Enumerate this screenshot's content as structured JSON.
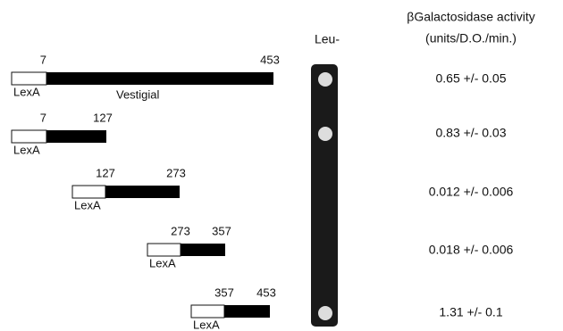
{
  "header": {
    "activity_title": "βGalactosidase activity",
    "activity_units": "(units/D.O./min.)",
    "plate_label": "Leu-"
  },
  "constructs": [
    {
      "start": "7",
      "end": "453",
      "fusion": "LexA",
      "name": "Vestigial",
      "activity": "0.65 +/- 0.05",
      "growth": true
    },
    {
      "start": "7",
      "end": "127",
      "fusion": "LexA",
      "activity": "0.83 +/- 0.03",
      "growth": true
    },
    {
      "start": "127",
      "end": "273",
      "fusion": "LexA",
      "activity": "0.012 +/- 0.006",
      "growth": false
    },
    {
      "start": "273",
      "end": "357",
      "fusion": "LexA",
      "activity": "0.018 +/- 0.006",
      "growth": false
    },
    {
      "start": "357",
      "end": "453",
      "fusion": "LexA",
      "activity": "1.31 +/- 0.1",
      "growth": true
    }
  ]
}
